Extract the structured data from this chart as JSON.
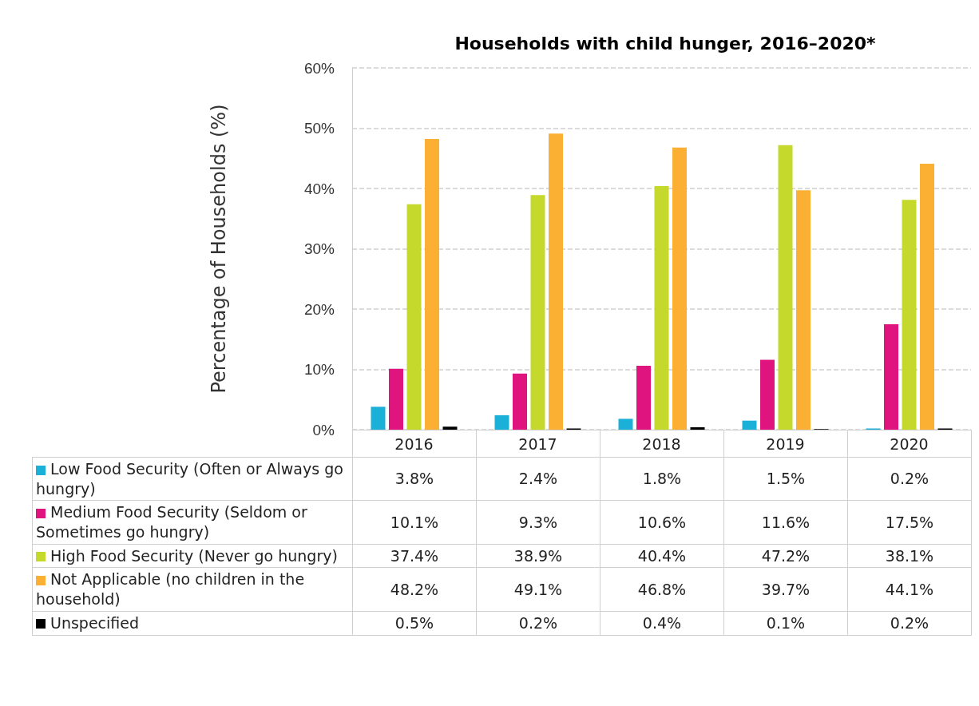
{
  "chart_data": {
    "type": "bar",
    "title": "Households with child hunger, 2016–2020*",
    "ylabel": "Percentage of Households (%)",
    "categories": [
      "2016",
      "2017",
      "2018",
      "2019",
      "2020"
    ],
    "series": [
      {
        "name": "Low Food Security (Often or Always go hungry)",
        "color": "#1ab0d8",
        "values": [
          3.8,
          2.4,
          1.8,
          1.5,
          0.2
        ],
        "value_labels": [
          "3.8%",
          "2.4%",
          "1.8%",
          "1.5%",
          "0.2%"
        ]
      },
      {
        "name": "Medium Food Security (Seldom or Sometimes go hungry)",
        "color": "#e0147f",
        "values": [
          10.1,
          9.3,
          10.6,
          11.6,
          17.5
        ],
        "value_labels": [
          "10.1%",
          "9.3%",
          "10.6%",
          "11.6%",
          "17.5%"
        ]
      },
      {
        "name": "High Food Security (Never go hungry)",
        "color": "#c5d92d",
        "values": [
          37.4,
          38.9,
          40.4,
          47.2,
          38.1
        ],
        "value_labels": [
          "37.4%",
          "38.9%",
          "40.4%",
          "47.2%",
          "38.1%"
        ]
      },
      {
        "name": "Not Applicable (no children in the household)",
        "color": "#fbb034",
        "values": [
          48.2,
          49.1,
          46.8,
          39.7,
          44.1
        ],
        "value_labels": [
          "48.2%",
          "49.1%",
          "46.8%",
          "39.7%",
          "44.1%"
        ]
      },
      {
        "name": "Unspecified",
        "color": "#000000",
        "values": [
          0.5,
          0.2,
          0.4,
          0.1,
          0.2
        ],
        "value_labels": [
          "0.5%",
          "0.2%",
          "0.4%",
          "0.1%",
          "0.2%"
        ]
      }
    ],
    "ylim": [
      0,
      60
    ],
    "yticks": [
      {
        "value": 0,
        "label": "0%"
      },
      {
        "value": 10,
        "label": "10%"
      },
      {
        "value": 20,
        "label": "20%"
      },
      {
        "value": 30,
        "label": "30%"
      },
      {
        "value": 40,
        "label": "40%"
      },
      {
        "value": 50,
        "label": "50%"
      },
      {
        "value": 60,
        "label": "60%"
      }
    ],
    "grid": "y",
    "legend": "bottom"
  }
}
